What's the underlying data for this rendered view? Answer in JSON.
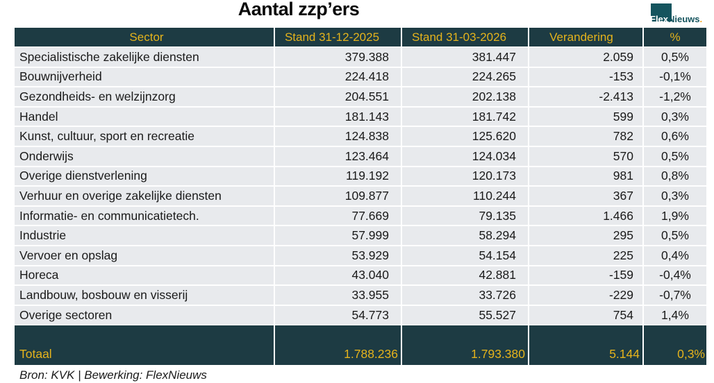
{
  "title": "Aantal zzp’ers",
  "logo": {
    "flex": "Flex",
    "nieuws": "Nieuws",
    "dot": "."
  },
  "footer": "Bron: KVK | Bewerking: FlexNieuws",
  "colors": {
    "header_bg": "#1d3b43",
    "gold_text": "#e5b31c",
    "row_bg": "#e8eaed",
    "negative_red": "#c00000",
    "logo_teal": "#15545e",
    "logo_orange": "#f5a51b"
  },
  "chart_data": {
    "type": "table",
    "title": "Aantal zzp’ers",
    "columns": [
      "Sector",
      "Stand 31-12-2025",
      "Stand 31-03-2026",
      "Verandering",
      "%"
    ],
    "rows": [
      {
        "sector": "Specialistische zakelijke diensten",
        "stand_2025": "379.388",
        "stand_2026": "381.447",
        "verandering": "2.059",
        "pct": "0,5%",
        "negative": false
      },
      {
        "sector": "Bouwnijverheid",
        "stand_2025": "224.418",
        "stand_2026": "224.265",
        "verandering": "-153",
        "pct": "-0,1%",
        "negative": true
      },
      {
        "sector": "Gezondheids- en welzijnzorg",
        "stand_2025": "204.551",
        "stand_2026": "202.138",
        "verandering": "-2.413",
        "pct": "-1,2%",
        "negative": true
      },
      {
        "sector": "Handel",
        "stand_2025": "181.143",
        "stand_2026": "181.742",
        "verandering": "599",
        "pct": "0,3%",
        "negative": false
      },
      {
        "sector": "Kunst, cultuur, sport en recreatie",
        "stand_2025": "124.838",
        "stand_2026": "125.620",
        "verandering": "782",
        "pct": "0,6%",
        "negative": false
      },
      {
        "sector": "Onderwijs",
        "stand_2025": "123.464",
        "stand_2026": "124.034",
        "verandering": "570",
        "pct": "0,5%",
        "negative": false
      },
      {
        "sector": "Overige dienstverlening",
        "stand_2025": "119.192",
        "stand_2026": "120.173",
        "verandering": "981",
        "pct": "0,8%",
        "negative": false
      },
      {
        "sector": "Verhuur en overige zakelijke diensten",
        "stand_2025": "109.877",
        "stand_2026": "110.244",
        "verandering": "367",
        "pct": "0,3%",
        "negative": false
      },
      {
        "sector": "Informatie- en communicatietech.",
        "stand_2025": "77.669",
        "stand_2026": "79.135",
        "verandering": "1.466",
        "pct": "1,9%",
        "negative": false
      },
      {
        "sector": "Industrie",
        "stand_2025": "57.999",
        "stand_2026": "58.294",
        "verandering": "295",
        "pct": "0,5%",
        "negative": false
      },
      {
        "sector": "Vervoer en opslag",
        "stand_2025": "53.929",
        "stand_2026": "54.154",
        "verandering": "225",
        "pct": "0,4%",
        "negative": false
      },
      {
        "sector": "Horeca",
        "stand_2025": "43.040",
        "stand_2026": "42.881",
        "verandering": "-159",
        "pct": "-0,4%",
        "negative": true
      },
      {
        "sector": "Landbouw, bosbouw en visserij",
        "stand_2025": "33.955",
        "stand_2026": "33.726",
        "verandering": "-229",
        "pct": "-0,7%",
        "negative": true
      },
      {
        "sector": "Overige sectoren",
        "stand_2025": "54.773",
        "stand_2026": "55.527",
        "verandering": "754",
        "pct": "1,4%",
        "negative": false
      }
    ],
    "total": {
      "sector": "Totaal",
      "stand_2025": "1.788.236",
      "stand_2026": "1.793.380",
      "verandering": "5.144",
      "pct": "0,3%",
      "negative": false
    }
  }
}
